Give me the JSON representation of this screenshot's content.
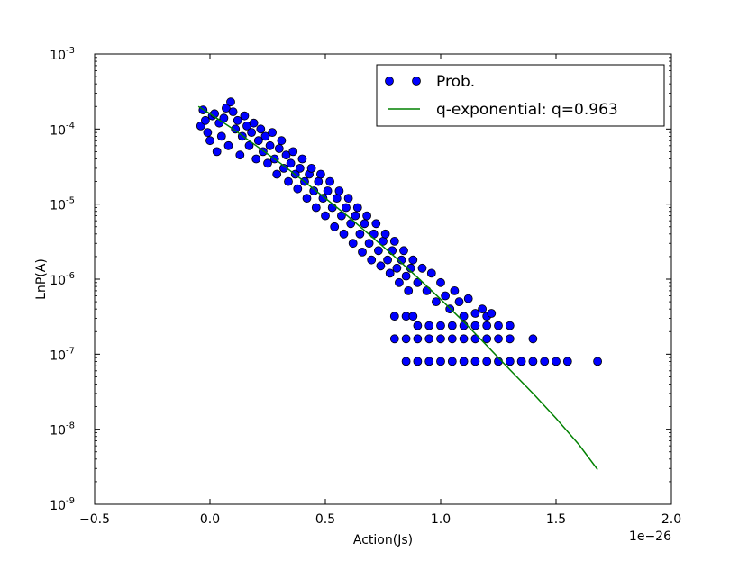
{
  "chart_data": {
    "type": "scatter",
    "xlabel": "Action(Js)",
    "ylabel": "LnP(A)",
    "x_offset_label": "1e−26",
    "xlim": [
      -0.5,
      2.0
    ],
    "ylim": [
      1e-09,
      0.001
    ],
    "yscale": "log",
    "grid": false,
    "legend_position": "top-right",
    "x_ticks": [
      "−0.5",
      "0.0",
      "0.5",
      "1.0",
      "1.5",
      "2.0"
    ],
    "y_ticks": [
      {
        "base": "10",
        "exp": "-3"
      },
      {
        "base": "10",
        "exp": "-4"
      },
      {
        "base": "10",
        "exp": "-5"
      },
      {
        "base": "10",
        "exp": "-6"
      },
      {
        "base": "10",
        "exp": "-7"
      },
      {
        "base": "10",
        "exp": "-8"
      },
      {
        "base": "10",
        "exp": "-9"
      }
    ],
    "series": [
      {
        "name": "Prob.",
        "kind": "scatter",
        "color": "#0000ff",
        "edge_color": "#000000",
        "points": [
          [
            -0.04,
            0.00011
          ],
          [
            -0.03,
            0.00018
          ],
          [
            -0.02,
            0.00013
          ],
          [
            -0.01,
            9e-05
          ],
          [
            0.0,
            7e-05
          ],
          [
            0.01,
            0.00015
          ],
          [
            0.02,
            0.00016
          ],
          [
            0.03,
            5e-05
          ],
          [
            0.04,
            0.00012
          ],
          [
            0.05,
            8e-05
          ],
          [
            0.06,
            0.00014
          ],
          [
            0.07,
            0.00019
          ],
          [
            0.08,
            6e-05
          ],
          [
            0.09,
            0.00023
          ],
          [
            0.1,
            0.00017
          ],
          [
            0.11,
            0.0001
          ],
          [
            0.12,
            0.00013
          ],
          [
            0.13,
            4.5e-05
          ],
          [
            0.14,
            8e-05
          ],
          [
            0.15,
            0.00015
          ],
          [
            0.16,
            0.00011
          ],
          [
            0.17,
            6e-05
          ],
          [
            0.18,
            9e-05
          ],
          [
            0.19,
            0.00012
          ],
          [
            0.2,
            4e-05
          ],
          [
            0.21,
            7e-05
          ],
          [
            0.22,
            0.0001
          ],
          [
            0.23,
            5e-05
          ],
          [
            0.24,
            8e-05
          ],
          [
            0.25,
            3.5e-05
          ],
          [
            0.26,
            6e-05
          ],
          [
            0.27,
            9e-05
          ],
          [
            0.28,
            4e-05
          ],
          [
            0.29,
            2.5e-05
          ],
          [
            0.3,
            5.5e-05
          ],
          [
            0.31,
            7e-05
          ],
          [
            0.32,
            3e-05
          ],
          [
            0.33,
            4.5e-05
          ],
          [
            0.34,
            2e-05
          ],
          [
            0.35,
            3.5e-05
          ],
          [
            0.36,
            5e-05
          ],
          [
            0.37,
            2.5e-05
          ],
          [
            0.38,
            1.6e-05
          ],
          [
            0.39,
            3e-05
          ],
          [
            0.4,
            4e-05
          ],
          [
            0.41,
            2e-05
          ],
          [
            0.42,
            1.2e-05
          ],
          [
            0.43,
            2.5e-05
          ],
          [
            0.44,
            3e-05
          ],
          [
            0.45,
            1.5e-05
          ],
          [
            0.46,
            9e-06
          ],
          [
            0.47,
            2e-05
          ],
          [
            0.48,
            2.5e-05
          ],
          [
            0.49,
            1.2e-05
          ],
          [
            0.5,
            7e-06
          ],
          [
            0.51,
            1.5e-05
          ],
          [
            0.52,
            2e-05
          ],
          [
            0.53,
            9e-06
          ],
          [
            0.54,
            5e-06
          ],
          [
            0.55,
            1.2e-05
          ],
          [
            0.56,
            1.5e-05
          ],
          [
            0.57,
            7e-06
          ],
          [
            0.58,
            4e-06
          ],
          [
            0.59,
            9e-06
          ],
          [
            0.6,
            1.2e-05
          ],
          [
            0.61,
            5.5e-06
          ],
          [
            0.62,
            3e-06
          ],
          [
            0.63,
            7e-06
          ],
          [
            0.64,
            9e-06
          ],
          [
            0.65,
            4e-06
          ],
          [
            0.66,
            2.3e-06
          ],
          [
            0.67,
            5.5e-06
          ],
          [
            0.68,
            7e-06
          ],
          [
            0.69,
            3e-06
          ],
          [
            0.7,
            1.8e-06
          ],
          [
            0.71,
            4e-06
          ],
          [
            0.72,
            5.5e-06
          ],
          [
            0.73,
            2.4e-06
          ],
          [
            0.74,
            1.5e-06
          ],
          [
            0.75,
            3.2e-06
          ],
          [
            0.76,
            4e-06
          ],
          [
            0.77,
            1.8e-06
          ],
          [
            0.78,
            1.2e-06
          ],
          [
            0.79,
            2.4e-06
          ],
          [
            0.8,
            3.2e-06
          ],
          [
            0.81,
            1.4e-06
          ],
          [
            0.82,
            9e-07
          ],
          [
            0.83,
            1.8e-06
          ],
          [
            0.84,
            2.4e-06
          ],
          [
            0.85,
            1.1e-06
          ],
          [
            0.86,
            7e-07
          ],
          [
            0.87,
            1.4e-06
          ],
          [
            0.88,
            1.8e-06
          ],
          [
            0.9,
            9e-07
          ],
          [
            0.92,
            1.4e-06
          ],
          [
            0.94,
            7e-07
          ],
          [
            0.96,
            1.2e-06
          ],
          [
            0.98,
            5e-07
          ],
          [
            1.0,
            9e-07
          ],
          [
            1.02,
            6e-07
          ],
          [
            1.04,
            4e-07
          ],
          [
            1.06,
            7e-07
          ],
          [
            1.08,
            5e-07
          ],
          [
            1.1,
            3.2e-07
          ],
          [
            1.12,
            5.5e-07
          ],
          [
            1.15,
            3.5e-07
          ],
          [
            1.18,
            4e-07
          ],
          [
            1.2,
            3.2e-07
          ],
          [
            1.22,
            3.5e-07
          ],
          [
            0.8,
            3.2e-07
          ],
          [
            0.85,
            3.2e-07
          ],
          [
            0.88,
            3.2e-07
          ],
          [
            0.9,
            2.4e-07
          ],
          [
            0.95,
            2.4e-07
          ],
          [
            1.0,
            2.4e-07
          ],
          [
            1.05,
            2.4e-07
          ],
          [
            1.1,
            2.4e-07
          ],
          [
            1.15,
            2.4e-07
          ],
          [
            1.2,
            2.4e-07
          ],
          [
            1.25,
            2.4e-07
          ],
          [
            1.3,
            2.4e-07
          ],
          [
            0.8,
            1.6e-07
          ],
          [
            0.85,
            1.6e-07
          ],
          [
            0.9,
            1.6e-07
          ],
          [
            0.95,
            1.6e-07
          ],
          [
            1.0,
            1.6e-07
          ],
          [
            1.05,
            1.6e-07
          ],
          [
            1.1,
            1.6e-07
          ],
          [
            1.15,
            1.6e-07
          ],
          [
            1.2,
            1.6e-07
          ],
          [
            1.25,
            1.6e-07
          ],
          [
            1.3,
            1.6e-07
          ],
          [
            1.4,
            1.6e-07
          ],
          [
            0.85,
            8e-08
          ],
          [
            0.9,
            8e-08
          ],
          [
            0.95,
            8e-08
          ],
          [
            1.0,
            8e-08
          ],
          [
            1.05,
            8e-08
          ],
          [
            1.1,
            8e-08
          ],
          [
            1.15,
            8e-08
          ],
          [
            1.2,
            8e-08
          ],
          [
            1.25,
            8e-08
          ],
          [
            1.3,
            8e-08
          ],
          [
            1.35,
            8e-08
          ],
          [
            1.4,
            8e-08
          ],
          [
            1.45,
            8e-08
          ],
          [
            1.5,
            8e-08
          ],
          [
            1.55,
            8e-08
          ],
          [
            1.68,
            8e-08
          ]
        ]
      },
      {
        "name": "q-exponential: q=0.963",
        "kind": "line",
        "color": "#008000",
        "points": [
          [
            -0.05,
            0.0002
          ],
          [
            0.0,
            0.00016
          ],
          [
            0.1,
            0.0001
          ],
          [
            0.2,
            6e-05
          ],
          [
            0.3,
            3.6e-05
          ],
          [
            0.4,
            2.1e-05
          ],
          [
            0.5,
            1.2e-05
          ],
          [
            0.6,
            6.8e-06
          ],
          [
            0.7,
            3.7e-06
          ],
          [
            0.8,
            2e-06
          ],
          [
            0.9,
            1.05e-06
          ],
          [
            1.0,
            5.4e-07
          ],
          [
            1.1,
            2.7e-07
          ],
          [
            1.2,
            1.3e-07
          ],
          [
            1.3,
            6.2e-08
          ],
          [
            1.4,
            3e-08
          ],
          [
            1.5,
            1.4e-08
          ],
          [
            1.6,
            6.2e-09
          ],
          [
            1.68,
            2.9e-09
          ]
        ]
      }
    ]
  }
}
